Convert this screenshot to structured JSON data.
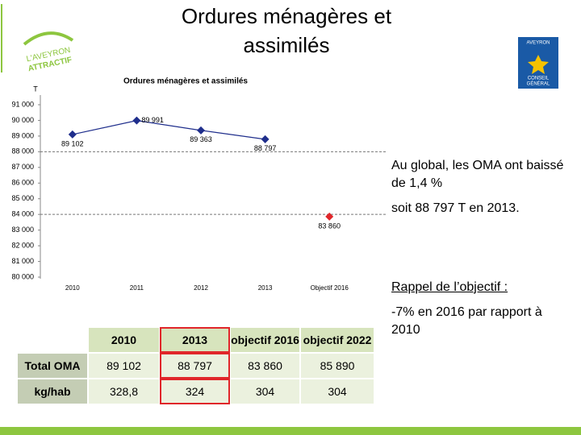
{
  "header": {
    "title": "Ordures ménagères et assimilés"
  },
  "logos": {
    "left": [
      "L'AVEYRON",
      "ATTRACTIF"
    ],
    "right": [
      "AVEYRON",
      "CONSEIL",
      "GÉNÉRAL"
    ]
  },
  "chart_data": {
    "type": "line",
    "title": "Ordures ménagères et assimilés",
    "y_label": "T",
    "categories": [
      "2010",
      "2011",
      "2012",
      "2013",
      "Objectif 2016"
    ],
    "series": [
      {
        "color": "#1f2e8c",
        "values": [
          89102,
          89991,
          89363,
          88797,
          null
        ],
        "value_labels": [
          "89 102",
          "89 991",
          "89 363",
          "88 797",
          null
        ]
      },
      {
        "color": "#e0262a",
        "values": [
          null,
          null,
          null,
          null,
          83860
        ],
        "value_labels": [
          null,
          null,
          null,
          null,
          "83 860"
        ]
      }
    ],
    "ylim": [
      80000,
      91000
    ],
    "yticks": [
      {
        "value": 80000,
        "label": "80 000"
      },
      {
        "value": 81000,
        "label": "81 000"
      },
      {
        "value": 82000,
        "label": "82 000"
      },
      {
        "value": 83000,
        "label": "83 000"
      },
      {
        "value": 84000,
        "label": "84 000"
      },
      {
        "value": 85000,
        "label": "85 000"
      },
      {
        "value": 86000,
        "label": "86 000"
      },
      {
        "value": 87000,
        "label": "87 000"
      },
      {
        "value": 88000,
        "label": "88 000"
      },
      {
        "value": 89000,
        "label": "89 000"
      },
      {
        "value": 90000,
        "label": "90 000"
      },
      {
        "value": 91000,
        "label": "91 000"
      }
    ],
    "reference_lines": [
      88000,
      84000
    ],
    "grid": false
  },
  "notes": [
    "Au global, les OMA ont baissé de 1,4 %",
    "soit 88 797 T en 2013.",
    "Rappel de l’objectif :",
    "-7% en 2016 par rapport à 2010"
  ],
  "table": {
    "columns": [
      "2010",
      "2013",
      "objectif 2016",
      "objectif 2022"
    ],
    "rows": [
      {
        "label": "Total OMA",
        "cells": [
          "89 102",
          "88 797",
          "83 860",
          "85 890"
        ]
      },
      {
        "label": "kg/hab",
        "cells": [
          "328,8",
          "324",
          "304",
          "304"
        ]
      }
    ]
  }
}
